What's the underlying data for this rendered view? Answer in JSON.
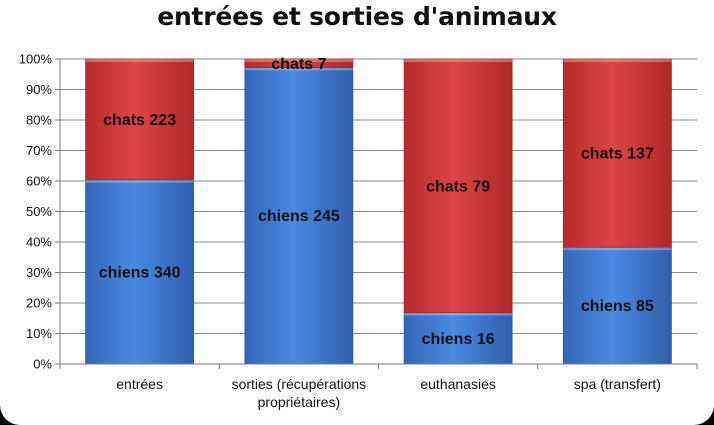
{
  "chart_data": {
    "type": "bar",
    "stacked": "percent",
    "title": "entrées et sorties d'animaux",
    "categories": [
      [
        "entrées"
      ],
      [
        "sorties (récupérations",
        "propriétaires)"
      ],
      [
        "euthanasies"
      ],
      [
        "spa (transfert)"
      ]
    ],
    "series": [
      {
        "name": "chiens",
        "values": [
          340,
          245,
          16,
          85
        ]
      },
      {
        "name": "chats",
        "values": [
          223,
          7,
          79,
          137
        ]
      }
    ],
    "data_labels": [
      [
        "chiens 340",
        "chiens 245",
        "chiens 16",
        "chiens 85"
      ],
      [
        "chats 223",
        "chats 7",
        "chats 79",
        "chats 137"
      ]
    ],
    "y_ticks": [
      "0%",
      "10%",
      "20%",
      "30%",
      "40%",
      "50%",
      "60%",
      "70%",
      "80%",
      "90%",
      "100%"
    ],
    "ylim": [
      0,
      100
    ],
    "grid": true,
    "legend": "none",
    "colors": {
      "chiens": "#3f7fd6",
      "chats": "#d63c3c"
    }
  }
}
